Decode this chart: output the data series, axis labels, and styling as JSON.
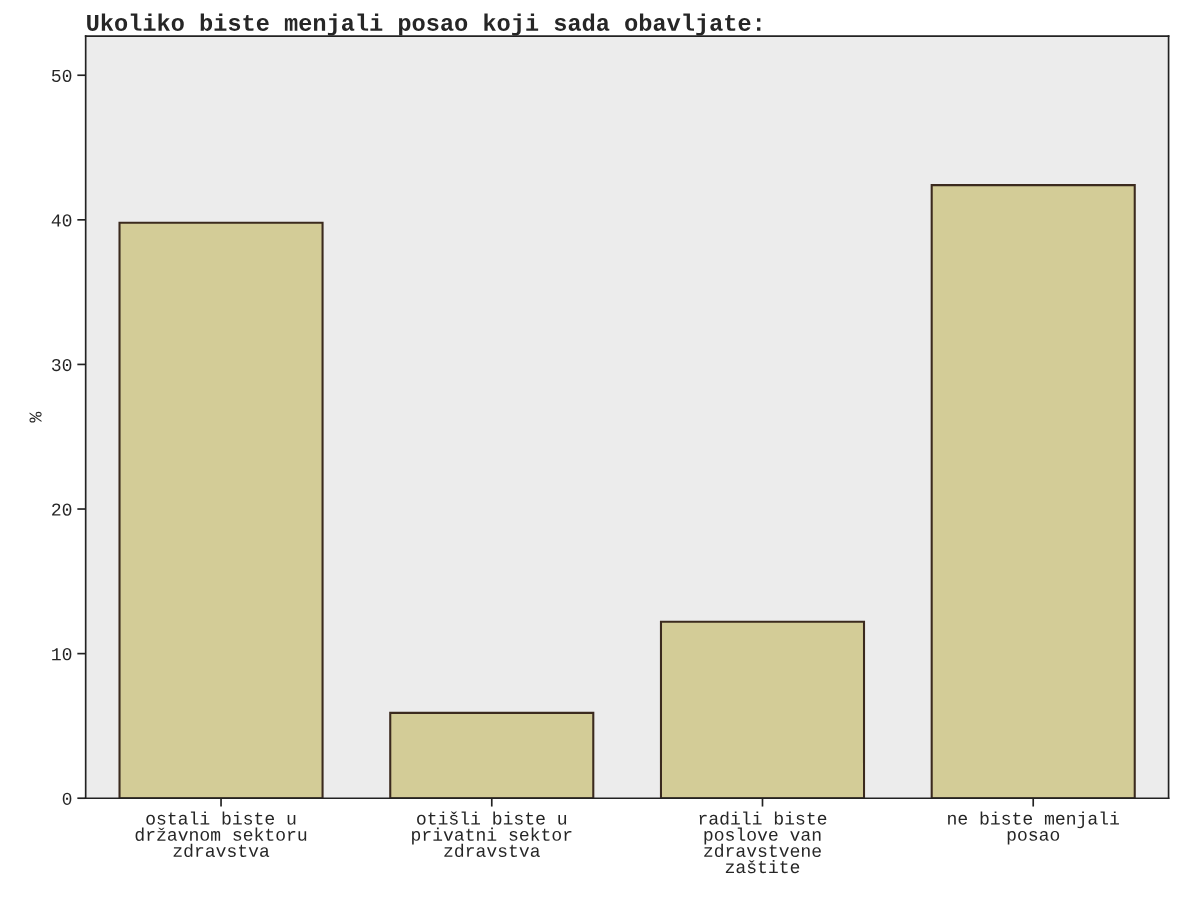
{
  "chart_data": {
    "type": "bar",
    "title": "Ukoliko biste menjali posao koji sada obavljate:",
    "ylabel": "%",
    "categories": [
      "ostali biste u\ndržavnom sektoru\nzdravstva",
      "otišli biste u\nprivatni sektor\nzdravstva",
      "radili biste\nposlove van\nzdravstvene\nzaštite",
      "ne biste menjali\nposao"
    ],
    "values": [
      39.8,
      5.9,
      12.2,
      42.4
    ],
    "color": "#d3cc97",
    "ylim": [
      0,
      52.7
    ],
    "yticks": [
      0,
      10,
      20,
      30,
      40,
      50
    ],
    "grid": false,
    "legend": false
  }
}
